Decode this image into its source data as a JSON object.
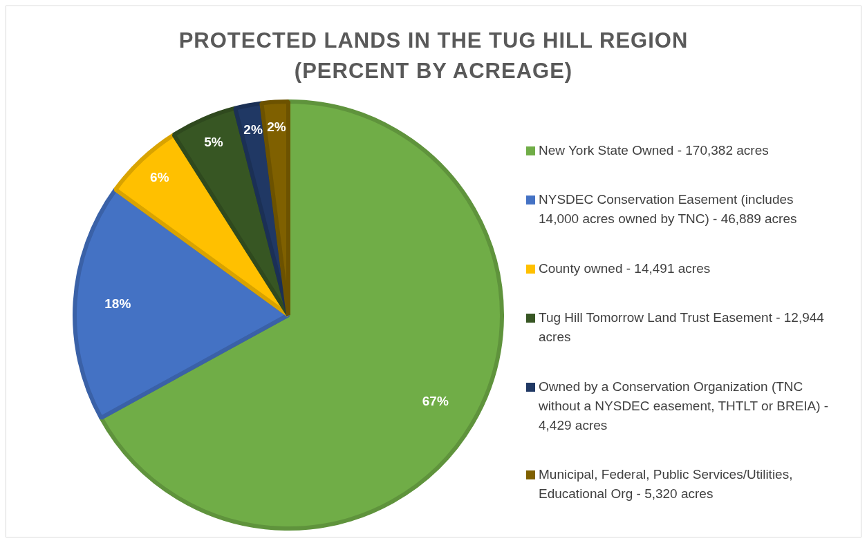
{
  "chart_data": {
    "type": "pie",
    "title": "PROTECTED LANDS IN THE TUG HILL REGION\n(PERCENT BY ACREAGE)",
    "categories": [
      "New York State Owned - 170,382 acres",
      "NYSDEC Conservation Easement (includes 14,000 acres owned by TNC) - 46,889 acres",
      "County owned - 14,491 acres",
      "Tug Hill Tomorrow Land Trust Easement - 12,944 acres",
      "Owned by a Conservation Organization (TNC without a NYSDEC easement, THTLT or BREIA) - 4,429 acres",
      "Municipal, Federal, Public Services/Utilities, Educational Org - 5,320 acres"
    ],
    "values": [
      67,
      18,
      6,
      5,
      2,
      2
    ],
    "colors": [
      "#70ad47",
      "#4472c4",
      "#ffc000",
      "#375623",
      "#203864",
      "#7f6000"
    ],
    "value_labels": [
      "67%",
      "18%",
      "6%",
      "5%",
      "2%",
      "2%"
    ],
    "legend": "right"
  }
}
